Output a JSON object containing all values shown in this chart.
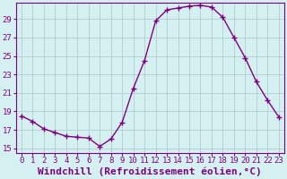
{
  "hours": [
    0,
    1,
    2,
    3,
    4,
    5,
    6,
    7,
    8,
    9,
    10,
    11,
    12,
    13,
    14,
    15,
    16,
    17,
    18,
    19,
    20,
    21,
    22,
    23
  ],
  "windchill": [
    18.5,
    17.9,
    17.1,
    16.7,
    16.3,
    16.2,
    16.1,
    15.2,
    16.0,
    17.8,
    21.5,
    24.5,
    28.8,
    30.0,
    30.2,
    30.4,
    30.5,
    30.3,
    29.2,
    27.0,
    24.8,
    22.2,
    20.2,
    18.4
  ],
  "line_color": "#800080",
  "marker": "+",
  "markersize": 4,
  "markeredgewidth": 1.0,
  "linewidth": 1.0,
  "background_color": "#d4f0f0",
  "grid_color": "#b0d0d0",
  "xlabel": "Windchill (Refroidissement éolien,°C)",
  "xlabel_fontsize": 8,
  "ylabel_ticks": [
    15,
    17,
    19,
    21,
    23,
    25,
    27,
    29
  ],
  "ylim": [
    14.5,
    30.8
  ],
  "xlim": [
    -0.5,
    23.5
  ],
  "tick_fontsize": 6.5
}
